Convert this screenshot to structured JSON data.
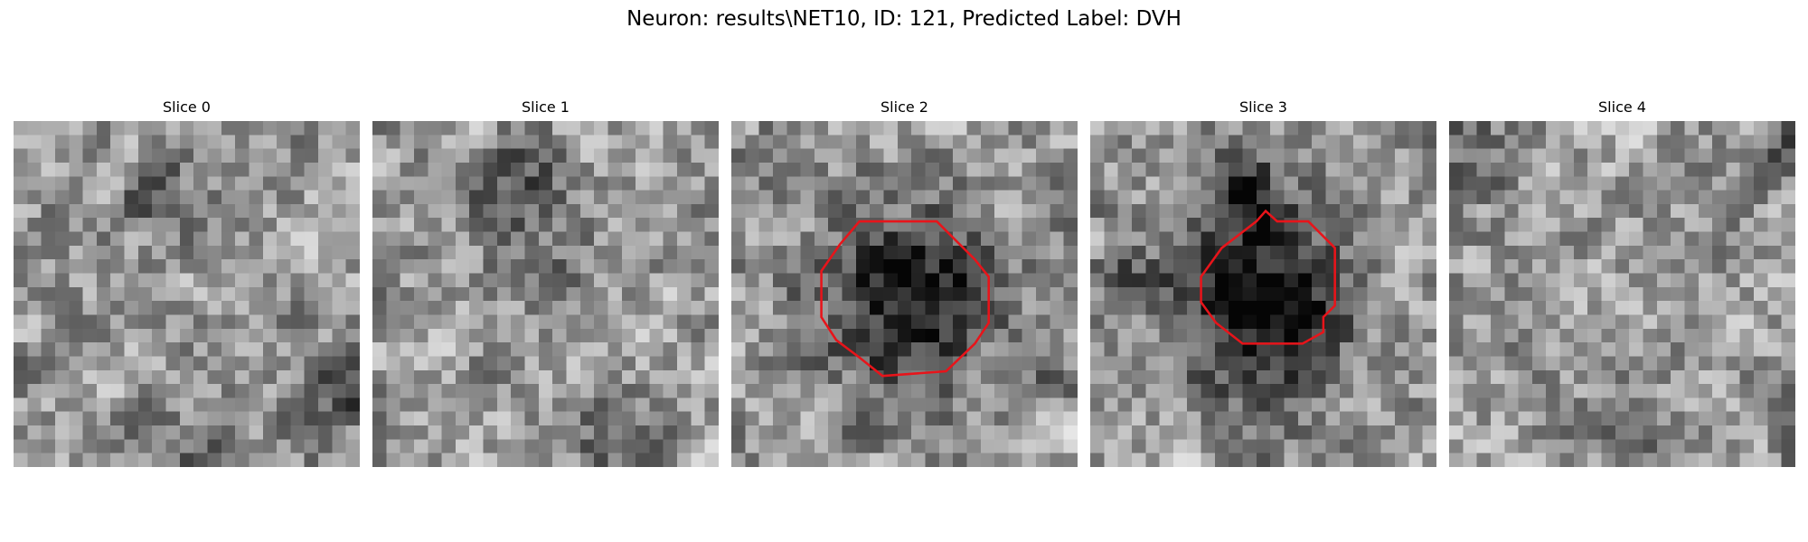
{
  "header": {
    "title": "Neuron: results\\NET10, ID: 121, Predicted Label: DVH"
  },
  "panels": [
    {
      "title": "Slice 0"
    },
    {
      "title": "Slice 1"
    },
    {
      "title": "Slice 2"
    },
    {
      "title": "Slice 3"
    },
    {
      "title": "Slice 4"
    }
  ]
}
